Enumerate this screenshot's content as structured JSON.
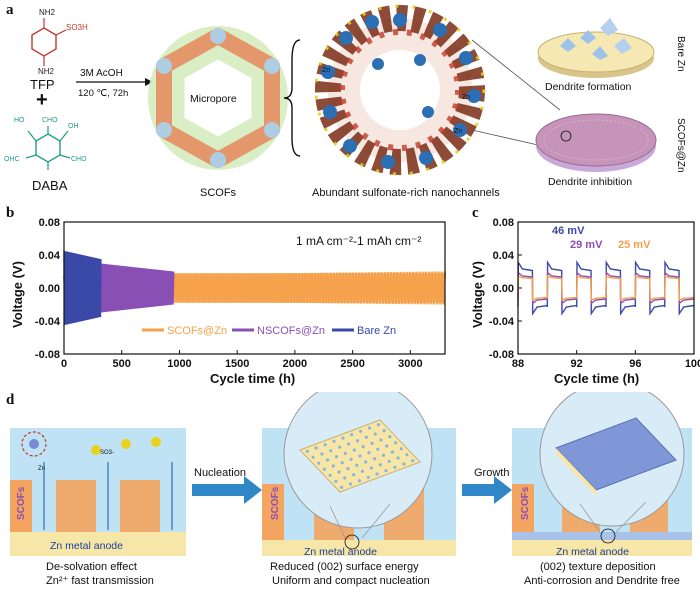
{
  "panels": {
    "a": "a",
    "b": "b",
    "c": "c",
    "d": "d"
  },
  "panel_a": {
    "reactant1": "TFP",
    "plus": "+",
    "reactant2": "DABA",
    "tfp_groups": {
      "nh2_top": "NH2",
      "so3h": "SO3H",
      "nh2_bottom": "NH2"
    },
    "daba_groups": {
      "cho_top_left": "OHC",
      "cho_top_right": "CHO",
      "ho_left": "HO",
      "oh_right": "OH",
      "cho_bottom_left": "OHC",
      "cho_bottom_right": "CHO"
    },
    "condition1": "3M AcOH",
    "condition2": "120 ℃, 72h",
    "micropore_label": "Micropore",
    "scofs_label": "SCOFs",
    "channels_label": "Abundant sulfonate-rich nanochannels",
    "zn_ion": "Zn",
    "dendrite_formation": "Dendrite formation",
    "dendrite_inhibition": "Dendrite inhibition",
    "bare_zn_side": "Bare Zn",
    "scofs_zn_side": "SCOFs@Zn"
  },
  "chart_data": [
    {
      "type": "line",
      "title": "1 mA cm⁻²-1 mAh cm⁻²",
      "xlabel": "Cycle time (h)",
      "ylabel": "Voltage (V)",
      "xlim": [
        0,
        3300
      ],
      "ylim": [
        -0.08,
        0.08
      ],
      "xticks": [
        "0",
        "500",
        "1000",
        "1500",
        "2000",
        "2500",
        "3000"
      ],
      "yticks": [
        "0.08",
        "0.04",
        "0.00",
        "-0.04",
        "-0.08"
      ],
      "legend": "bottom",
      "series": [
        {
          "name": "SCOFs@Zn",
          "color": "#f5a04a",
          "x": [
            0,
            3300
          ],
          "y_amplitude": [
            0.015,
            0.02
          ]
        },
        {
          "name": "NSCOFs@Zn",
          "color": "#8a4fb5",
          "x": [
            300,
            950
          ],
          "y_amplitude": [
            0.03,
            0.02
          ]
        },
        {
          "name": "Bare Zn",
          "color": "#3a48a8",
          "x": [
            0,
            320
          ],
          "y_amplitude": [
            0.045,
            0.035
          ]
        }
      ]
    },
    {
      "type": "line",
      "xlabel": "Cycle time (h)",
      "ylabel": "Voltage (V)",
      "xlim": [
        88,
        100
      ],
      "ylim": [
        -0.08,
        0.08
      ],
      "xticks": [
        "88",
        "92",
        "96",
        "100"
      ],
      "yticks": [
        "0.08",
        "0.04",
        "0.00",
        "-0.04",
        "-0.08"
      ],
      "annotations": [
        {
          "text": "46 mV",
          "color": "#3a48a8"
        },
        {
          "text": "29 mV",
          "color": "#8a4fb5"
        },
        {
          "text": "25 mV",
          "color": "#f5a04a"
        }
      ]
    }
  ],
  "panel_d": {
    "step1_arrow": "Nucleation",
    "step2_arrow": "Growth",
    "scofs_label": "SCOFs",
    "anode_label": "Zn metal anode",
    "ion_label": "SO3-",
    "zn_label": "Zn",
    "caption1_line1": "De-solvation effect",
    "caption1_line2": "Zn²⁺ fast transmission",
    "caption2_line1": "Reduced (002) surface energy",
    "caption2_line2": "Uniform and compact nucleation",
    "caption3_line1": "(002) texture deposition",
    "caption3_line2": "Anti-corrosion and Dendrite free"
  }
}
